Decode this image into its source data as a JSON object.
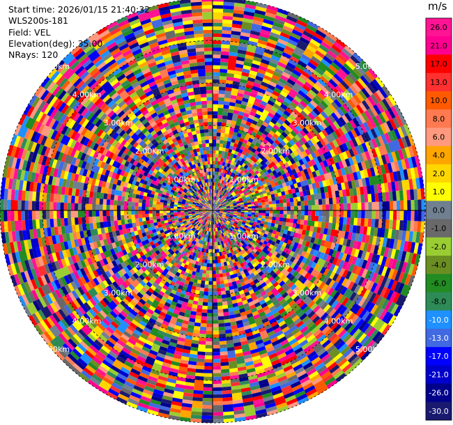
{
  "info": {
    "start_time": "Start time: 2026/01/15 21:40:32",
    "instrument": "WLS200s-181",
    "field": "Field: VEL",
    "elevation": "Elevation(deg): 35.00",
    "nrays": "NRays: 120"
  },
  "chart_data": {
    "type": "heatmap",
    "projection": "polar-ppi",
    "field": "VEL",
    "elevation_deg": 35.0,
    "nrays": 120,
    "max_range_km": 5.0,
    "range_rings_km": [
      1.0,
      2.0,
      3.0,
      4.0,
      5.0
    ],
    "ring_labels": [
      "1.00km",
      "2.00km",
      "3.00km",
      "4.00km",
      "5.00km"
    ],
    "colorbar": {
      "unit": "m/s",
      "ticks": [
        "26.0",
        "21.0",
        "17.0",
        "13.0",
        "10.0",
        "8.0",
        "6.0",
        "4.0",
        "2.0",
        "1.0",
        "0.0",
        "-1.0",
        "-2.0",
        "-4.0",
        "-6.0",
        "-8.0",
        "-10.0",
        "-13.0",
        "-17.0",
        "-21.0",
        "-26.0",
        "-30.0"
      ],
      "colors": [
        "#ff1493",
        "#ff0090",
        "#ff0000",
        "#ff3030",
        "#ff5a00",
        "#ff7a50",
        "#ff9a80",
        "#ffa500",
        "#ffd700",
        "#ffff00",
        "#708090",
        "#696969",
        "#9acd32",
        "#6b8e23",
        "#228b22",
        "#2e8b57",
        "#1e90ff",
        "#4169e1",
        "#0000ff",
        "#0000cd",
        "#00008b",
        "#191970"
      ]
    },
    "crosshair": true,
    "grid": true
  }
}
